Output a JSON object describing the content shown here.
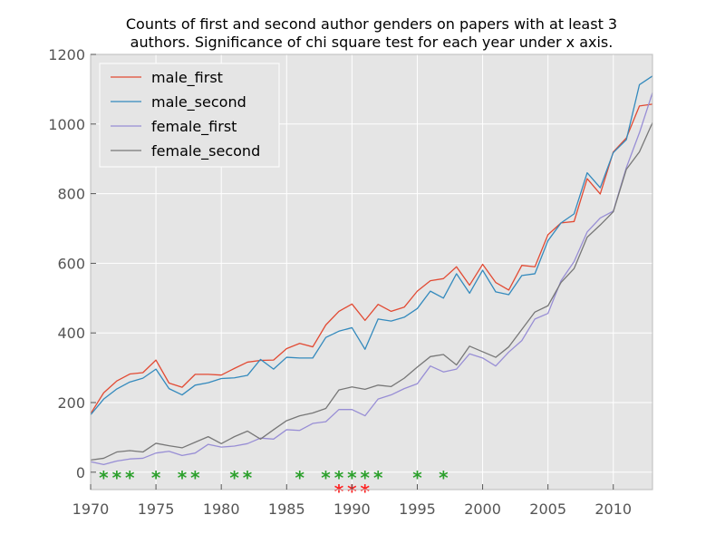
{
  "chart_data": {
    "type": "line",
    "title": [
      "Counts of first and second author genders on papers with at least 3",
      "authors. Significance of chi square test for each year under x axis."
    ],
    "xlabel": "",
    "ylabel": "",
    "xlim": [
      1970,
      2013
    ],
    "ylim": [
      -50,
      1200
    ],
    "x_ticks": [
      1970,
      1975,
      1980,
      1985,
      1990,
      1995,
      2000,
      2005,
      2010
    ],
    "y_ticks": [
      0,
      200,
      400,
      600,
      800,
      1000,
      1200
    ],
    "grid": true,
    "background": "#e5e5e5",
    "legend_position": "upper-left",
    "x": [
      1970,
      1971,
      1972,
      1973,
      1974,
      1975,
      1976,
      1977,
      1978,
      1979,
      1980,
      1981,
      1982,
      1983,
      1984,
      1985,
      1986,
      1987,
      1988,
      1989,
      1990,
      1991,
      1992,
      1993,
      1994,
      1995,
      1996,
      1997,
      1998,
      1999,
      2000,
      2001,
      2002,
      2003,
      2004,
      2005,
      2006,
      2007,
      2008,
      2009,
      2010,
      2011,
      2012,
      2013
    ],
    "series": [
      {
        "name": "male_first",
        "color": "#e24a33",
        "values": [
          168,
          228,
          262,
          282,
          286,
          322,
          256,
          244,
          281,
          281,
          279,
          298,
          316,
          321,
          322,
          355,
          370,
          360,
          423,
          462,
          483,
          436,
          482,
          462,
          474,
          520,
          550,
          556,
          590,
          537,
          597,
          545,
          523,
          594,
          590,
          682,
          716,
          720,
          843,
          799,
          920,
          960,
          1052,
          1057
        ]
      },
      {
        "name": "male_second",
        "color": "#348abd",
        "values": [
          165,
          210,
          239,
          259,
          270,
          296,
          240,
          222,
          250,
          257,
          269,
          271,
          278,
          324,
          296,
          330,
          328,
          328,
          387,
          405,
          415,
          353,
          440,
          434,
          445,
          470,
          520,
          500,
          570,
          514,
          580,
          518,
          510,
          565,
          570,
          665,
          716,
          742,
          860,
          817,
          918,
          955,
          1113,
          1138
        ]
      },
      {
        "name": "female_first",
        "color": "#988ed5",
        "values": [
          30,
          22,
          32,
          38,
          40,
          55,
          60,
          48,
          55,
          80,
          72,
          75,
          82,
          98,
          95,
          122,
          120,
          140,
          145,
          180,
          180,
          162,
          210,
          222,
          240,
          254,
          305,
          288,
          296,
          340,
          328,
          305,
          345,
          378,
          440,
          456,
          550,
          605,
          690,
          730,
          750,
          875,
          975,
          1090
        ]
      },
      {
        "name": "female_second",
        "color": "#777777",
        "values": [
          35,
          40,
          58,
          62,
          58,
          83,
          76,
          70,
          86,
          102,
          82,
          102,
          118,
          95,
          122,
          148,
          162,
          170,
          183,
          236,
          245,
          238,
          250,
          246,
          270,
          302,
          332,
          338,
          308,
          362,
          346,
          330,
          360,
          410,
          460,
          478,
          545,
          585,
          675,
          710,
          748,
          870,
          920,
          1004
        ]
      }
    ],
    "significance_markers": {
      "green": {
        "color": "#2ca02c",
        "symbol": "*",
        "years": [
          1971,
          1972,
          1973,
          1975,
          1977,
          1978,
          1981,
          1982,
          1986,
          1988,
          1989,
          1990,
          1991,
          1992,
          1995,
          1997
        ]
      },
      "red": {
        "color": "#ff2020",
        "symbol": "*",
        "years": [
          1989,
          1990,
          1991
        ]
      }
    }
  }
}
